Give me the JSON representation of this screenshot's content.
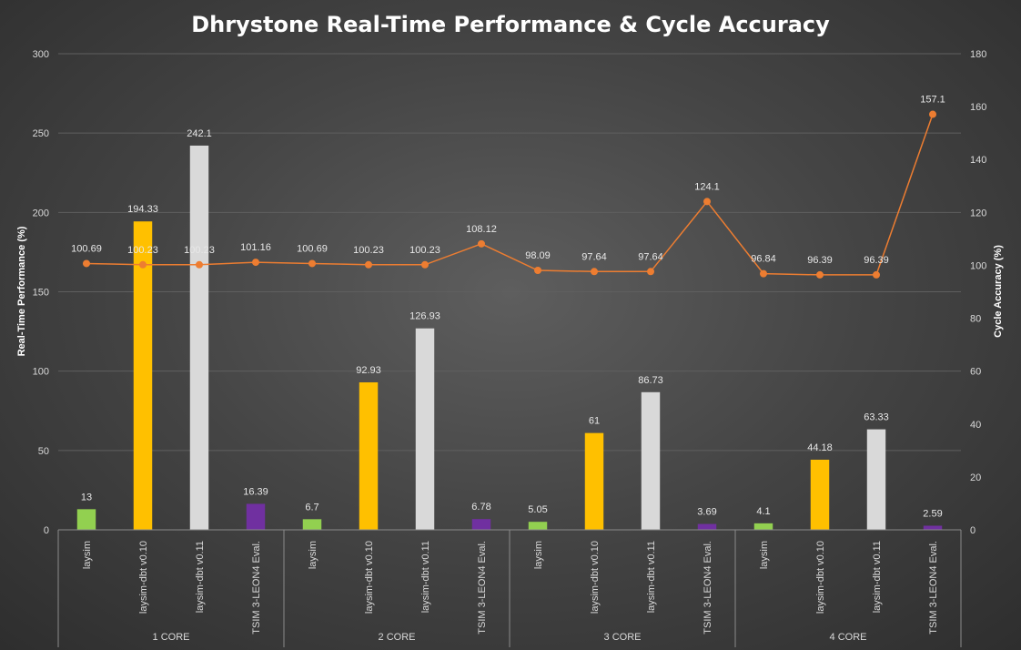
{
  "chart_data": {
    "type": "bar",
    "title": "Dhrystone Real-Time Performance & Cycle Accuracy",
    "ylabel": "Real-Time Performance  (%)",
    "y2label": "Cycle Accuracy (%)",
    "ylim": [
      0,
      300
    ],
    "y2lim": [
      0,
      180
    ],
    "yticks": [
      0,
      50,
      100,
      150,
      200,
      250,
      300
    ],
    "y2ticks": [
      0,
      20,
      40,
      60,
      80,
      100,
      120,
      140,
      160,
      180
    ],
    "groups": [
      "1 CORE",
      "2 CORE",
      "3 CORE",
      "4 CORE"
    ],
    "categories": [
      "laysim",
      "laysim-dbt v0.10",
      "laysim-dbt v0.11",
      "TSIM 3-LEON4 Eval.",
      "laysim",
      "laysim-dbt v0.10",
      "laysim-dbt v0.11",
      "TSIM 3-LEON4 Eval.",
      "laysim",
      "laysim-dbt v0.10",
      "laysim-dbt v0.11",
      "TSIM 3-LEON4 Eval.",
      "laysim",
      "laysim-dbt v0.10",
      "laysim-dbt v0.11",
      "TSIM 3-LEON4 Eval."
    ],
    "series": [
      {
        "type": "bar",
        "axis": "left",
        "values": [
          13,
          194.33,
          242.1,
          16.39,
          6.7,
          92.93,
          126.93,
          6.78,
          5.05,
          61,
          86.73,
          3.69,
          4.1,
          44.18,
          63.33,
          2.59
        ],
        "labels": [
          "13",
          "194.33",
          "242.1",
          "16.39",
          "6.7",
          "92.93",
          "126.93",
          "6.78",
          "5.05",
          "61",
          "86.73",
          "3.69",
          "4.1",
          "44.18",
          "63.33",
          "2.59"
        ],
        "colors": [
          "#92d050",
          "#ffc000",
          "#d9d9d9",
          "#7030a0"
        ]
      },
      {
        "type": "line",
        "axis": "right",
        "color": "#ed7d31",
        "values": [
          100.69,
          100.23,
          100.23,
          101.16,
          100.69,
          100.23,
          100.23,
          108.12,
          98.09,
          97.64,
          97.64,
          124.1,
          96.84,
          96.39,
          96.39,
          157.1
        ],
        "labels": [
          "100.69",
          "100.23",
          "100.23",
          "101.16",
          "100.69",
          "100.23",
          "100.23",
          "108.12",
          "98.09",
          "97.64",
          "97.64",
          "124.1",
          "96.84",
          "96.39",
          "96.39",
          "157.1"
        ]
      }
    ],
    "grid": true,
    "legend": "none"
  }
}
